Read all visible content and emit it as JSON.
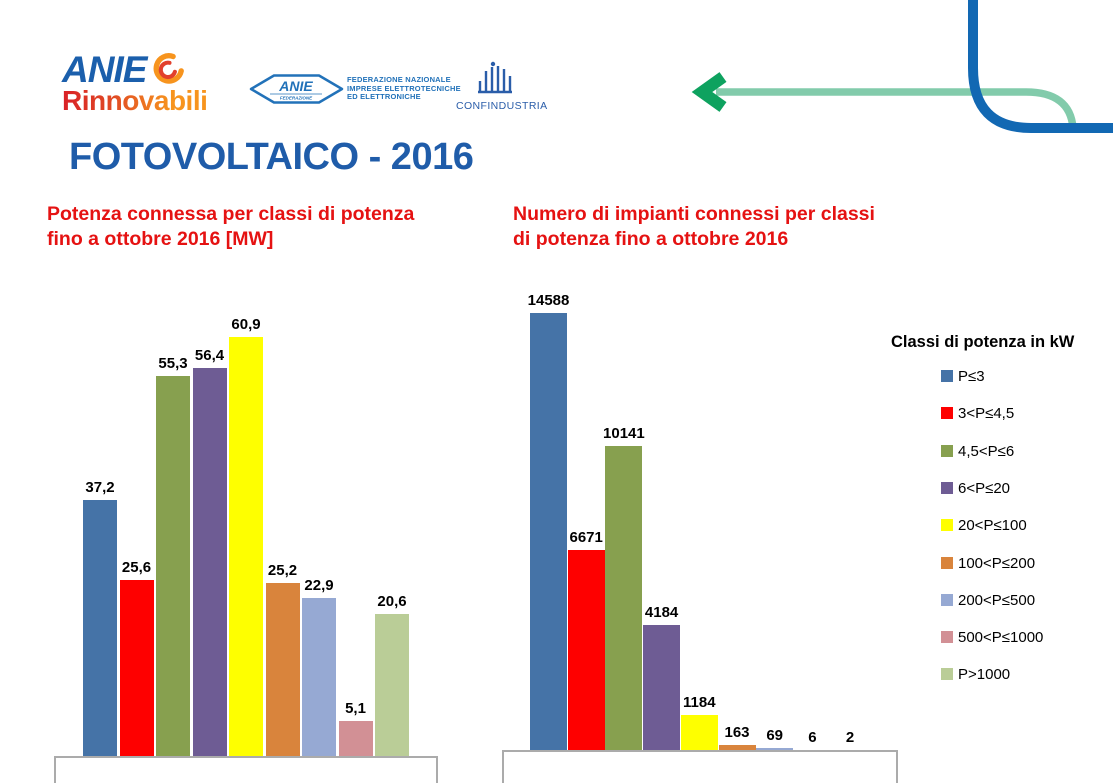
{
  "slide": {
    "background": "#FFFFFF"
  },
  "header": {
    "title": "FOTOVOLTAICO - 2016",
    "logos": {
      "anie_rinnovabili": {
        "top_text": "ANIE",
        "bottom_text": "Rinnovabili"
      },
      "anie_federazione": {
        "oval_main": "ANIE",
        "oval_sub": "FEDERAZIONE",
        "text_lines": [
          "FEDERAZIONE NAZIONALE",
          "IMPRESE ELETTROTECNICHE",
          "ED ELETTRONICHE"
        ]
      },
      "confindustria": {
        "label": "CONFINDUSTRIA"
      }
    }
  },
  "colors": {
    "slide_title": "#1F5CA9",
    "chart_title_red": "#E51212",
    "axis_gray": "#ABABAB",
    "decor_blue": "#1268B3",
    "decor_green_line": "#82CBAB",
    "decor_green_arrow": "#0EA25F"
  },
  "chart_data": [
    {
      "type": "bar",
      "title": "Potenza connessa per classi di potenza fino a ottobre 2016 [MW]",
      "title_lines": [
        "Potenza connessa per classi di potenza",
        "fino a ottobre 2016 [MW]"
      ],
      "unit": "MW",
      "categories": [
        "P≤3",
        "3<P≤4,5",
        "4,5<P≤6",
        "6<P≤20",
        "20<P≤100",
        "100<P≤200",
        "200<P≤500",
        "500<P≤1000",
        "P>1000"
      ],
      "values": [
        37.2,
        25.6,
        55.3,
        56.4,
        60.9,
        25.2,
        22.9,
        5.1,
        20.6
      ],
      "data_labels": [
        "37,2",
        "25,6",
        "55,3",
        "56,4",
        "60,9",
        "25,2",
        "22,9",
        "5,1",
        "20,6"
      ],
      "colors": [
        "#4573A7",
        "#FE0000",
        "#87A04F",
        "#6E5C94",
        "#FEFF00",
        "#D9843C",
        "#96A9D3",
        "#D29095",
        "#BACD97"
      ],
      "ylim": [
        0,
        65
      ],
      "grid": false,
      "data_labels_visible": true,
      "x_tick_labels_visible": false,
      "legend_position": "right"
    },
    {
      "type": "bar",
      "title": "Numero di impianti connessi per classi di potenza fino a ottobre 2016",
      "title_lines": [
        "Numero di impianti connessi per classi",
        "di potenza fino a ottobre 2016"
      ],
      "categories": [
        "P≤3",
        "3<P≤4,5",
        "4,5<P≤6",
        "6<P≤20",
        "20<P≤100",
        "100<P≤200",
        "200<P≤500",
        "500<P≤1000",
        "P>1000"
      ],
      "values": [
        14588,
        6671,
        10141,
        4184,
        1184,
        163,
        69,
        6,
        2
      ],
      "data_labels": [
        "14588",
        "6671",
        "10141",
        "4184",
        "1184",
        "163",
        "69",
        "6",
        "2"
      ],
      "colors": [
        "#4573A7",
        "#FE0000",
        "#87A04F",
        "#6E5C94",
        "#FEFF00",
        "#D9843C",
        "#96A9D3",
        "#D29095",
        "#BACD97"
      ],
      "ylim": [
        0,
        15000
      ],
      "grid": false,
      "data_labels_visible": true,
      "x_tick_labels_visible": false,
      "legend_position": "right"
    }
  ],
  "legend": {
    "title": "Classi di potenza in kW",
    "items": [
      {
        "label": "P≤3",
        "color": "#4573A7"
      },
      {
        "label": "3<P≤4,5",
        "color": "#FE0000"
      },
      {
        "label": "4,5<P≤6",
        "color": "#87A04F"
      },
      {
        "label": "6<P≤20",
        "color": "#6E5C94"
      },
      {
        "label": "20<P≤100",
        "color": "#FEFF00"
      },
      {
        "label": "100<P≤200",
        "color": "#D9843C"
      },
      {
        "label": "200<P≤500",
        "color": "#96A9D3"
      },
      {
        "label": "500<P≤1000",
        "color": "#D29095"
      },
      {
        "label": "P>1000",
        "color": "#BACD97"
      }
    ]
  }
}
